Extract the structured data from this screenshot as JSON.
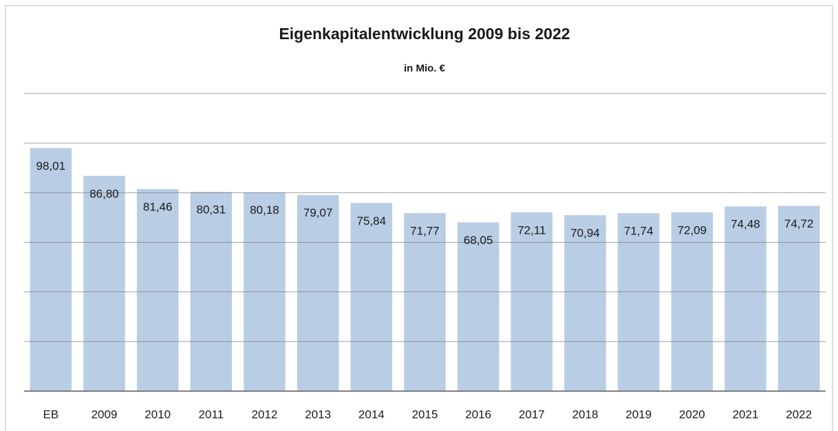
{
  "chart_data": {
    "type": "bar",
    "title": "Eigenkapitalentwicklung 2009 bis 2022",
    "subtitle": "in Mio. €",
    "categories": [
      "EB",
      "2009",
      "2010",
      "2011",
      "2012",
      "2013",
      "2014",
      "2015",
      "2016",
      "2017",
      "2018",
      "2019",
      "2020",
      "2021",
      "2022"
    ],
    "values": [
      98.01,
      86.8,
      81.46,
      80.31,
      80.18,
      79.07,
      75.84,
      71.77,
      68.05,
      72.11,
      70.94,
      71.74,
      72.09,
      74.48,
      74.72
    ],
    "value_labels": [
      "98,01",
      "86,80",
      "81,46",
      "80,31",
      "80,18",
      "79,07",
      "75,84",
      "71,77",
      "68,05",
      "72,11",
      "70,94",
      "71,74",
      "72,09",
      "74,48",
      "74,72"
    ],
    "color": "#b9cde5",
    "ylim": [
      0,
      120
    ],
    "yticks": [
      0,
      20,
      40,
      60,
      80,
      100,
      120
    ],
    "grid": true
  }
}
